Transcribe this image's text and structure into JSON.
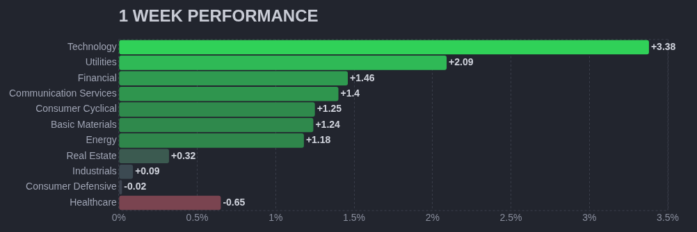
{
  "chart_data": {
    "type": "bar",
    "orientation": "horizontal",
    "title": "1 WEEK PERFORMANCE",
    "categories": [
      "Technology",
      "Utilities",
      "Financial",
      "Communication Services",
      "Consumer Cyclical",
      "Basic Materials",
      "Energy",
      "Real Estate",
      "Industrials",
      "Consumer Defensive",
      "Healthcare"
    ],
    "values": [
      3.38,
      2.09,
      1.46,
      1.4,
      1.25,
      1.24,
      1.18,
      0.32,
      0.09,
      -0.02,
      -0.65
    ],
    "base": [
      0,
      0,
      0,
      0,
      0,
      0,
      0,
      0,
      0,
      0.02,
      0.65
    ],
    "colors": [
      "#30d158",
      "#2fb956",
      "#2f9a50",
      "#2f954e",
      "#2f8a4c",
      "#2f894c",
      "#2f864b",
      "#3b5a50",
      "#3c4a52",
      "#3e4450",
      "#7a4450"
    ],
    "value_labels": [
      "+3.38",
      "+2.09",
      "+1.46",
      "+1.4",
      "+1.25",
      "+1.24",
      "+1.18",
      "+0.32",
      "+0.09",
      "-0.02",
      "-0.65"
    ],
    "xlim": [
      0,
      3.5
    ],
    "xticks": [
      {
        "value": 0,
        "label": "0%"
      },
      {
        "value": 0.5,
        "label": "0.5%"
      },
      {
        "value": 1,
        "label": "1%"
      },
      {
        "value": 1.5,
        "label": "1.5%"
      },
      {
        "value": 2,
        "label": "2%"
      },
      {
        "value": 2.5,
        "label": "2.5%"
      },
      {
        "value": 3,
        "label": "3%"
      },
      {
        "value": 3.5,
        "label": "3.5%"
      }
    ],
    "grid": "x"
  }
}
